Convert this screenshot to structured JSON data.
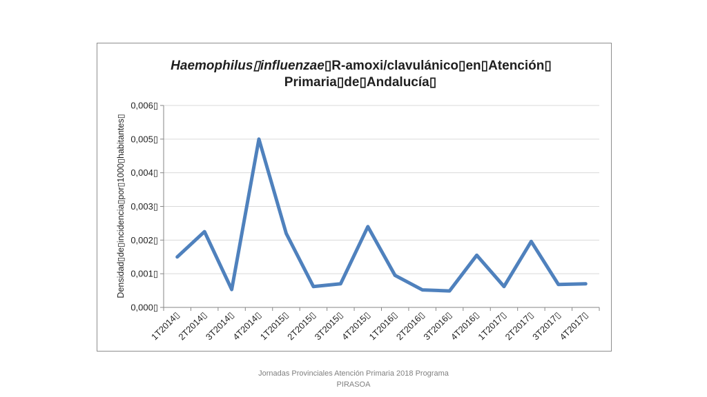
{
  "footer": {
    "line1": "Jornadas Provinciales Atención Primaria 2018  Programa",
    "line2": "PIRASOA"
  },
  "chart_data": {
    "type": "line",
    "title_italic": "Haemophilus▯influenzae",
    "title_rest": "▯R-amoxi/clavulánico▯en▯Atención▯",
    "title_line2": "Primaria▯de▯Andalucía▯",
    "ylabel": "Densidad▯de▯incidencia▯por▯1000▯habitantes▯",
    "xlabel": "",
    "categories": [
      "1T2014▯",
      "2T2014▯",
      "3T2014▯",
      "4T2014▯",
      "1T2015▯",
      "2T2015▯",
      "3T2015▯",
      "4T2015▯",
      "1T2016▯",
      "2T2016▯",
      "3T2016▯",
      "4T2016▯",
      "1T2017▯",
      "2T2017▯",
      "3T2017▯",
      "4T2017▯"
    ],
    "series": [
      {
        "values": [
          0.0015,
          0.00225,
          0.00053,
          0.005,
          0.0022,
          0.00062,
          0.0007,
          0.0024,
          0.00095,
          0.00052,
          0.00049,
          0.00155,
          0.00062,
          0.00196,
          0.00068,
          0.0007
        ]
      }
    ],
    "yticks": [
      "0,000▯",
      "0,001▯",
      "0,002▯",
      "0,003▯",
      "0,004▯",
      "0,005▯",
      "0,006▯"
    ],
    "ylim": [
      0,
      0.006
    ],
    "grid": true,
    "line_color": "#4f81bd",
    "grid_color": "#d9d9d9",
    "axis_color": "#868686"
  }
}
